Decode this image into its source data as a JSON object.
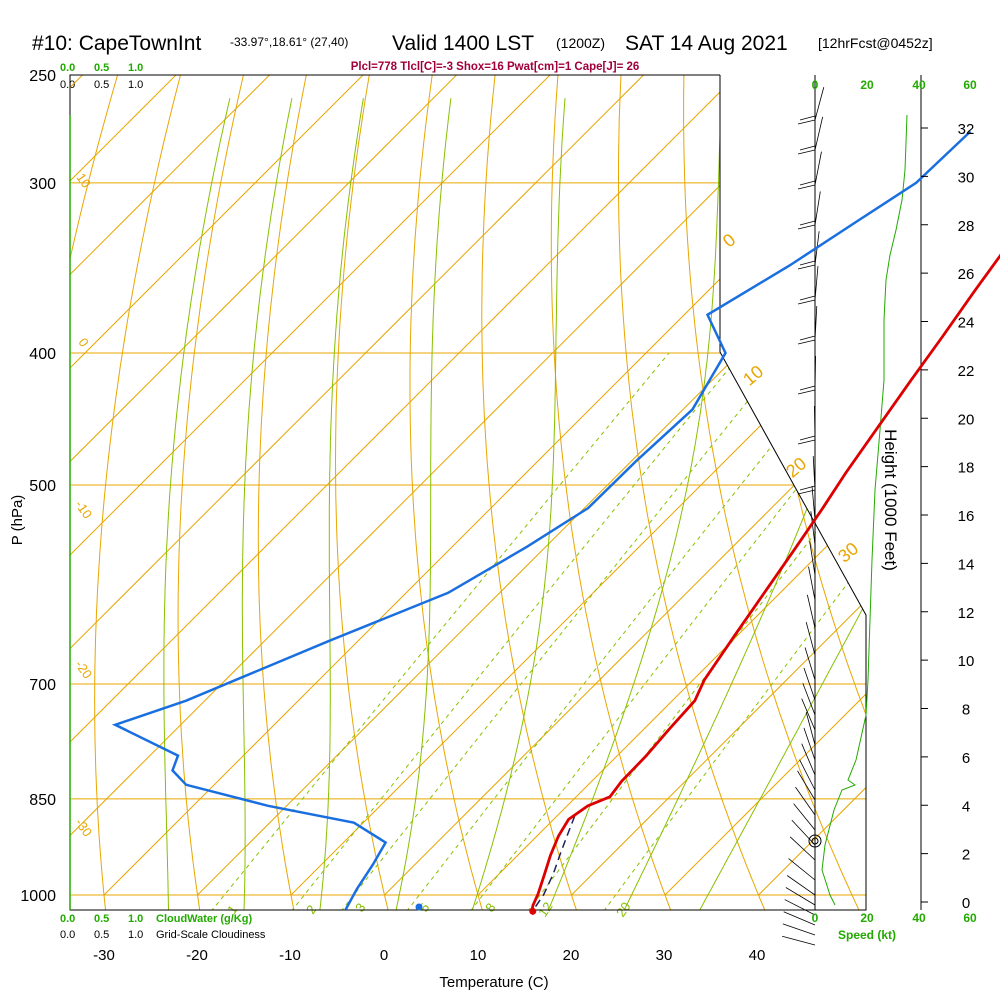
{
  "header": {
    "station": "#10: CapeTownInt",
    "coords": "-33.97°,18.61° (27,40)",
    "valid": "Valid 1400 LST",
    "zulu": "(1200Z)",
    "date": "SAT 14 Aug 2021",
    "forecast": "[12hrFcst@0452z]",
    "indices": "Plcl=778 Tlcl[C]=-3 Shox=16 Pwat[cm]=1 Cape[J]= 26"
  },
  "colors": {
    "temperature": "#dd0000",
    "dewpoint": "#1a6fe0",
    "isotherm": "#e8a600",
    "dry_adiabat": "#e8a600",
    "moist_adiabat": "#88c000",
    "mixing_ratio": "#88c000",
    "cloud_scale": "#22aa00",
    "indices_text": "#a0003a",
    "wind_speed": "#22aa00"
  },
  "cloud_scale": {
    "cloudwater_ticks": [
      "0.0",
      "0.5",
      "1.0"
    ],
    "cloudiness_ticks": [
      "0.0",
      "0.5",
      "1.0"
    ],
    "cloudwater_label": "CloudWater (g/Kg)",
    "cloudiness_label": "Grid-Scale Cloudiness"
  },
  "wind_speed_axis": {
    "ticks": [
      "0",
      "20",
      "40",
      "60"
    ],
    "label": "Speed (kt)"
  },
  "chart_data": {
    "type": "line",
    "title": "",
    "xlabel": "Temperature (C)",
    "ylabel": "P (hPa)",
    "y2label": "Height (1000 Feet)",
    "x_ticks": [
      "-30",
      "-20",
      "-10",
      "0",
      "10",
      "20",
      "30",
      "40"
    ],
    "y_ticks": [
      "250",
      "300",
      "400",
      "500",
      "700",
      "850",
      "1000"
    ],
    "height_ticks": [
      "0",
      "2",
      "4",
      "6",
      "8",
      "10",
      "12",
      "14",
      "16",
      "18",
      "20",
      "22",
      "24",
      "26",
      "28",
      "30",
      "32"
    ],
    "xlim": [
      -34,
      36
    ],
    "ylim": [
      1050,
      250
    ],
    "dry_adiabat_labels": [
      "0",
      "10",
      "20",
      "30"
    ],
    "moist_adiabat_labels": [
      "10",
      "0",
      "-10",
      "-20",
      "-30"
    ],
    "mixing_ratio_labels": [
      "1",
      "2",
      "3",
      "5",
      "8",
      "12",
      "20"
    ],
    "series": [
      {
        "name": "",
        "points": [
          [
            -5.3,
            275
          ],
          [
            -4.3,
            300
          ],
          [
            -3.0,
            330
          ],
          [
            -1.5,
            360
          ],
          [
            0.0,
            390
          ],
          [
            1.3,
            420
          ],
          [
            2.8,
            455
          ],
          [
            4.2,
            490
          ],
          [
            5.5,
            520
          ],
          [
            6.8,
            555
          ],
          [
            8.3,
            600
          ],
          [
            9.7,
            645
          ],
          [
            11.2,
            695
          ],
          [
            12.4,
            720
          ],
          [
            12.7,
            755
          ],
          [
            13.1,
            790
          ],
          [
            13.2,
            825
          ],
          [
            13.6,
            847
          ],
          [
            12.2,
            860
          ],
          [
            11.6,
            880
          ],
          [
            12.3,
            905
          ],
          [
            13.5,
            935
          ],
          [
            15.0,
            968
          ],
          [
            16.3,
            998
          ],
          [
            17.0,
            1018
          ],
          [
            17.5,
            1028
          ]
        ]
      },
      {
        "name": "",
        "points": [
          [
            -19.0,
            275
          ],
          [
            -19.3,
            300
          ],
          [
            -21.5,
            320
          ],
          [
            -24.0,
            345
          ],
          [
            -27.5,
            375
          ],
          [
            -21.5,
            400
          ],
          [
            -19.0,
            440
          ],
          [
            -19.5,
            480
          ],
          [
            -19.6,
            520
          ],
          [
            -22.0,
            555
          ],
          [
            -25.5,
            600
          ],
          [
            -33.0,
            650
          ],
          [
            -42.0,
            720
          ],
          [
            -47.0,
            750
          ],
          [
            -37.0,
            790
          ],
          [
            -36.0,
            810
          ],
          [
            -33.0,
            830
          ],
          [
            -22.0,
            860
          ],
          [
            -11.0,
            885
          ],
          [
            -5.5,
            915
          ],
          [
            -4.5,
            950
          ],
          [
            -3.6,
            990
          ],
          [
            -2.6,
            1025
          ]
        ]
      },
      {
        "name": "",
        "points": [
          [
            11.9,
            875
          ],
          [
            13.2,
            905
          ],
          [
            14.5,
            935
          ],
          [
            15.8,
            965
          ],
          [
            17.0,
            1000
          ],
          [
            17.5,
            1025
          ]
        ]
      }
    ]
  }
}
